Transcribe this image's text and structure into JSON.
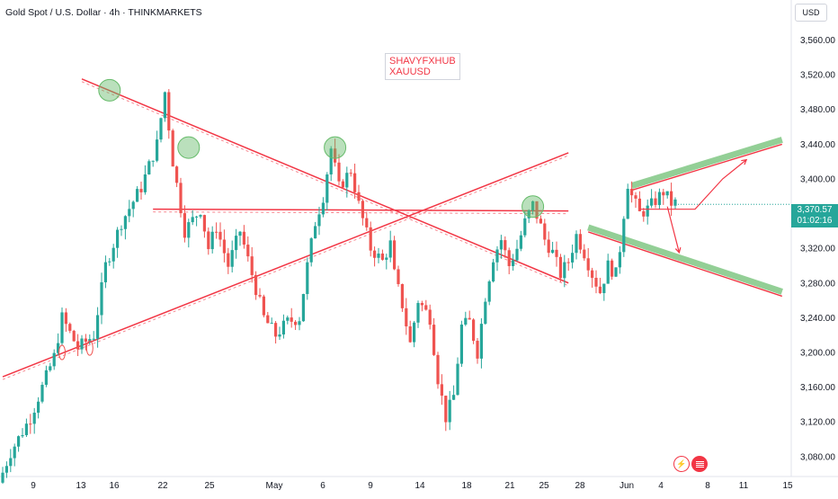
{
  "header": {
    "title": "Gold Spot / U.S. Dollar · 4h · THINKMARKETS",
    "currency": "USD"
  },
  "watermark": {
    "line1": "SHAVYFXHUB",
    "line2": "XAUUSD"
  },
  "price_badge": {
    "price": "3,370.57",
    "countdown": "01:02:16"
  },
  "colors": {
    "up": "#26a69a",
    "down": "#ef5350",
    "trendline": "#f23645",
    "channel": "#81c784",
    "marker": "#66bb6a",
    "axis_text": "#131722"
  },
  "icons": [
    "lightning-icon",
    "us-flag-icon"
  ],
  "chart_data": {
    "type": "candlestick",
    "title": "Gold Spot / U.S. Dollar · 4h · THINKMARKETS",
    "ylabel": "USD",
    "ylim": [
      3050,
      3595
    ],
    "y_ticks": [
      "3,560.00",
      "3,520.00",
      "3,480.00",
      "3,440.00",
      "3,400.00",
      "3,360.00",
      "3,320.00",
      "3,280.00",
      "3,240.00",
      "3,200.00",
      "3,160.00",
      "3,120.00",
      "3,080.00"
    ],
    "x_ticks": [
      "9",
      "13",
      "16",
      "22",
      "25",
      "May",
      "6",
      "9",
      "14",
      "18",
      "21",
      "25",
      "28",
      "Jun",
      "4",
      "8",
      "11",
      "15"
    ],
    "last_price": 3370.57,
    "path": [
      [
        0,
        3050
      ],
      [
        3,
        3085
      ],
      [
        8,
        3125
      ],
      [
        14,
        3195
      ],
      [
        16,
        3240
      ],
      [
        20,
        3205
      ],
      [
        24,
        3220
      ],
      [
        27,
        3300
      ],
      [
        31,
        3350
      ],
      [
        36,
        3390
      ],
      [
        40,
        3440
      ],
      [
        42,
        3500
      ],
      [
        44,
        3420
      ],
      [
        47,
        3340
      ],
      [
        51,
        3365
      ],
      [
        53,
        3320
      ],
      [
        55,
        3345
      ],
      [
        58,
        3300
      ],
      [
        61,
        3340
      ],
      [
        64,
        3290
      ],
      [
        67,
        3240
      ],
      [
        70,
        3220
      ],
      [
        73,
        3235
      ],
      [
        76,
        3240
      ],
      [
        78,
        3300
      ],
      [
        80,
        3350
      ],
      [
        82,
        3380
      ],
      [
        84,
        3435
      ],
      [
        86,
        3390
      ],
      [
        89,
        3410
      ],
      [
        91,
        3370
      ],
      [
        94,
        3320
      ],
      [
        97,
        3305
      ],
      [
        99,
        3325
      ],
      [
        100,
        3290
      ],
      [
        102,
        3255
      ],
      [
        104,
        3210
      ],
      [
        106,
        3260
      ],
      [
        109,
        3240
      ],
      [
        111,
        3170
      ],
      [
        113,
        3125
      ],
      [
        115,
        3150
      ],
      [
        117,
        3230
      ],
      [
        119,
        3235
      ],
      [
        121,
        3200
      ],
      [
        123,
        3265
      ],
      [
        125,
        3310
      ],
      [
        127,
        3330
      ],
      [
        129,
        3300
      ],
      [
        131,
        3320
      ],
      [
        133,
        3350
      ],
      [
        135,
        3370
      ],
      [
        137,
        3345
      ],
      [
        138,
        3330
      ],
      [
        140,
        3315
      ],
      [
        142,
        3290
      ],
      [
        144,
        3305
      ],
      [
        146,
        3335
      ],
      [
        148,
        3315
      ],
      [
        150,
        3290
      ],
      [
        152,
        3270
      ],
      [
        154,
        3300
      ],
      [
        156,
        3290
      ],
      [
        157,
        3320
      ],
      [
        158,
        3360
      ],
      [
        159,
        3395
      ],
      [
        160,
        3380
      ],
      [
        162,
        3360
      ],
      [
        164,
        3365
      ],
      [
        166,
        3375
      ],
      [
        168,
        3385
      ],
      [
        170,
        3372
      ]
    ],
    "trendlines": [
      {
        "name": "descending-resistance",
        "from": [
          20,
          3515
        ],
        "to": [
          143,
          3280
        ]
      },
      {
        "name": "ascending-support",
        "from": [
          0,
          3172
        ],
        "to": [
          143,
          3430
        ]
      },
      {
        "name": "horizontal-level",
        "from": [
          38,
          3365
        ],
        "to": [
          143,
          3363
        ]
      }
    ],
    "channels": [
      {
        "name": "upper-channel",
        "from": [
          159,
          3392
        ],
        "to": [
          197,
          3445
        ]
      },
      {
        "name": "lower-channel",
        "from": [
          148,
          3344
        ],
        "to": [
          197,
          3270
        ]
      }
    ],
    "projections": [
      {
        "name": "bullish-path",
        "points": [
          [
            161,
            3365
          ],
          [
            175,
            3365
          ],
          [
            182,
            3400
          ],
          [
            188,
            3422
          ]
        ]
      },
      {
        "name": "bearish-path",
        "points": [
          [
            168,
            3368
          ],
          [
            171,
            3315
          ]
        ]
      }
    ],
    "markers": [
      [
        27,
        3502
      ],
      [
        47,
        3436
      ],
      [
        84,
        3436
      ],
      [
        134,
        3368
      ]
    ],
    "legend": "none",
    "grid": false
  }
}
